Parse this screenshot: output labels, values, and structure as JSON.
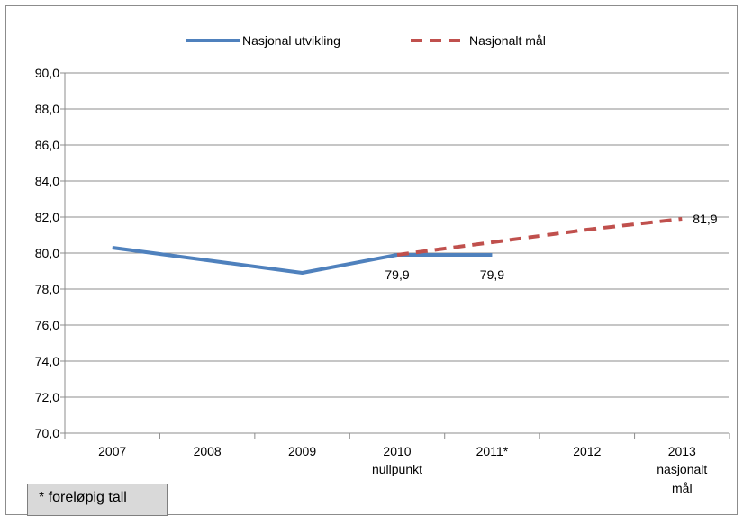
{
  "chart_data": {
    "type": "line",
    "categories": [
      "2007",
      "2008",
      "2009",
      "2010",
      "2011*",
      "2012",
      "2013"
    ],
    "category_sublabels": [
      "",
      "",
      "",
      "nullpunkt",
      "",
      "",
      "nasjonalt mål"
    ],
    "ylim": [
      70,
      90
    ],
    "yticks": [
      "70,0",
      "72,0",
      "74,0",
      "76,0",
      "78,0",
      "80,0",
      "82,0",
      "84,0",
      "86,0",
      "88,0",
      "90,0"
    ],
    "grid": true,
    "legend_position": "top",
    "series": [
      {
        "name": "Nasjonal utvikling",
        "style": "solid",
        "color": "#4f81bd",
        "values": [
          80.3,
          79.6,
          78.9,
          79.9,
          79.9,
          null,
          null
        ]
      },
      {
        "name": "Nasjonalt mål",
        "style": "dashed",
        "color": "#c0504d",
        "values": [
          null,
          null,
          null,
          79.9,
          80.6,
          81.3,
          81.9
        ]
      }
    ],
    "data_labels": [
      {
        "category": "2010",
        "text": "79,9"
      },
      {
        "category": "2011*",
        "text": "79,9"
      },
      {
        "category": "2013",
        "text": "81,9"
      }
    ],
    "footnote": "* foreløpig tall"
  }
}
